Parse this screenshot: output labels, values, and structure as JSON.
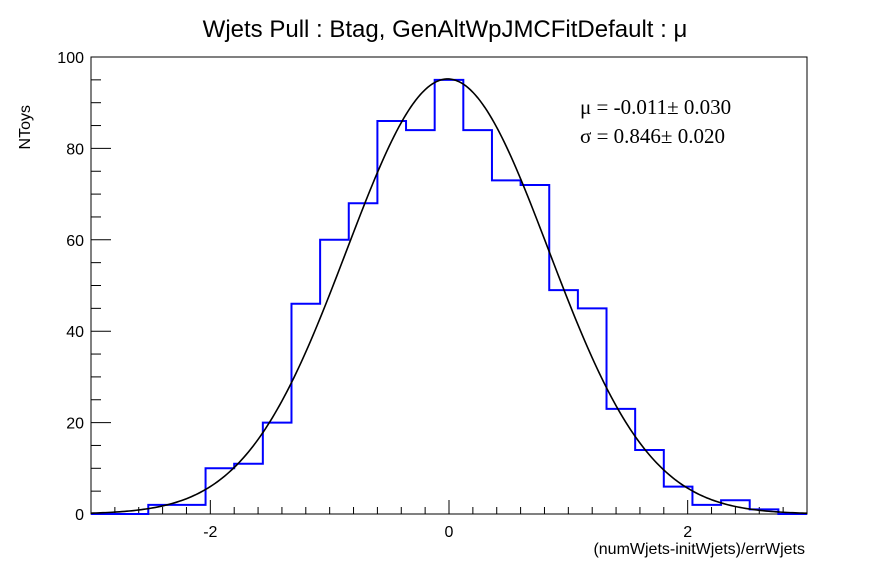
{
  "chart_data": {
    "type": "histogram",
    "title": "Wjets Pull : Btag, GenAltWpJMCFitDefault : μ",
    "xlabel": "(numWjets-initWjets)/errWjets",
    "ylabel": "NToys",
    "xlim": [
      -3,
      3
    ],
    "ylim": [
      0,
      100
    ],
    "x_major_ticks": [
      -2,
      0,
      2
    ],
    "y_major_ticks": [
      0,
      20,
      40,
      60,
      80,
      100
    ],
    "x_tick_labels": [
      "-2",
      "0",
      "2"
    ],
    "y_tick_labels": [
      "0",
      "20",
      "40",
      "60",
      "80",
      "100"
    ],
    "bins": {
      "edges": [
        -3.0,
        -2.76,
        -2.52,
        -2.28,
        -2.04,
        -1.8,
        -1.56,
        -1.32,
        -1.08,
        -0.84,
        -0.6,
        -0.36,
        -0.12,
        0.12,
        0.36,
        0.6,
        0.84,
        1.08,
        1.32,
        1.56,
        1.8,
        2.04,
        2.28,
        2.52,
        2.76,
        3.0
      ],
      "counts": [
        0,
        0,
        2,
        2,
        10,
        11,
        20,
        46,
        60,
        68,
        86,
        84,
        95,
        84,
        73,
        72,
        49,
        45,
        23,
        14,
        6,
        2,
        3,
        1,
        0
      ],
      "color": "#0000ff"
    },
    "fit": {
      "function": "gaussian",
      "amplitude": 95.2,
      "mean": -0.011,
      "sigma": 0.846,
      "color": "#000000"
    },
    "stats": {
      "mu_line": "μ = -0.011± 0.030",
      "sigma_line": "σ =  0.846± 0.020"
    },
    "grid": false
  }
}
